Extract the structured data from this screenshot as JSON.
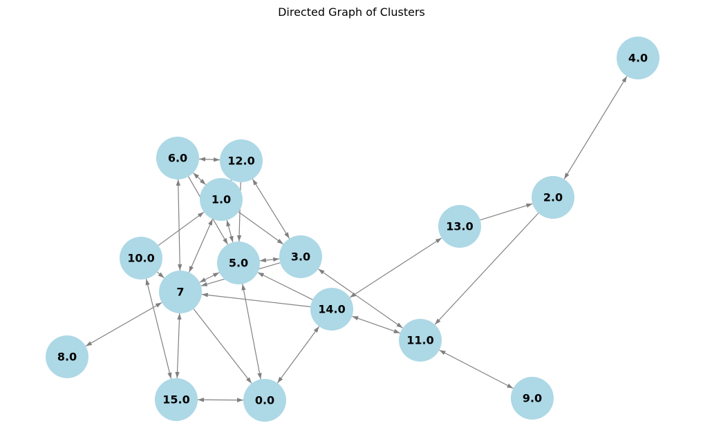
{
  "graph": {
    "title": "Directed Graph of Clusters",
    "colors": {
      "node_fill": "#add8e6",
      "edge": "#808080",
      "label": "#000000"
    },
    "nodes": [
      {
        "id": "4.0",
        "label": "4.0"
      },
      {
        "id": "6.0",
        "label": "6.0"
      },
      {
        "id": "12.0",
        "label": "12.0"
      },
      {
        "id": "1.0",
        "label": "1.0"
      },
      {
        "id": "2.0",
        "label": "2.0"
      },
      {
        "id": "13.0",
        "label": "13.0"
      },
      {
        "id": "10.0",
        "label": "10.0"
      },
      {
        "id": "5.0",
        "label": "5.0"
      },
      {
        "id": "3.0",
        "label": "3.0"
      },
      {
        "id": "7",
        "label": "7"
      },
      {
        "id": "14.0",
        "label": "14.0"
      },
      {
        "id": "11.0",
        "label": "11.0"
      },
      {
        "id": "8.0",
        "label": "8.0"
      },
      {
        "id": "15.0",
        "label": "15.0"
      },
      {
        "id": "0.0",
        "label": "0.0"
      },
      {
        "id": "9.0",
        "label": "9.0"
      }
    ],
    "edges": [
      {
        "source": "2.0",
        "target": "4.0",
        "bidirectional": true
      },
      {
        "source": "6.0",
        "target": "12.0",
        "bidirectional": true
      },
      {
        "source": "13.0",
        "target": "2.0",
        "bidirectional": false
      },
      {
        "source": "2.0",
        "target": "11.0",
        "bidirectional": false
      },
      {
        "source": "6.0",
        "target": "1.0",
        "bidirectional": true
      },
      {
        "source": "12.0",
        "target": "1.0",
        "bidirectional": false
      },
      {
        "source": "12.0",
        "target": "3.0",
        "bidirectional": true
      },
      {
        "source": "12.0",
        "target": "5.0",
        "bidirectional": false
      },
      {
        "source": "6.0",
        "target": "7",
        "bidirectional": true
      },
      {
        "source": "6.0",
        "target": "5.0",
        "bidirectional": false
      },
      {
        "source": "1.0",
        "target": "5.0",
        "bidirectional": true
      },
      {
        "source": "1.0",
        "target": "3.0",
        "bidirectional": false
      },
      {
        "source": "1.0",
        "target": "7",
        "bidirectional": true
      },
      {
        "source": "10.0",
        "target": "1.0",
        "bidirectional": false
      },
      {
        "source": "10.0",
        "target": "7",
        "bidirectional": false
      },
      {
        "source": "10.0",
        "target": "15.0",
        "bidirectional": true
      },
      {
        "source": "5.0",
        "target": "3.0",
        "bidirectional": true
      },
      {
        "source": "5.0",
        "target": "7",
        "bidirectional": true
      },
      {
        "source": "3.0",
        "target": "7",
        "bidirectional": false
      },
      {
        "source": "5.0",
        "target": "0.0",
        "bidirectional": true
      },
      {
        "source": "14.0",
        "target": "7",
        "bidirectional": false
      },
      {
        "source": "14.0",
        "target": "5.0",
        "bidirectional": false
      },
      {
        "source": "14.0",
        "target": "13.0",
        "bidirectional": true
      },
      {
        "source": "14.0",
        "target": "11.0",
        "bidirectional": true
      },
      {
        "source": "3.0",
        "target": "11.0",
        "bidirectional": true
      },
      {
        "source": "14.0",
        "target": "0.0",
        "bidirectional": true
      },
      {
        "source": "7",
        "target": "8.0",
        "bidirectional": true
      },
      {
        "source": "7",
        "target": "15.0",
        "bidirectional": true
      },
      {
        "source": "7",
        "target": "0.0",
        "bidirectional": false
      },
      {
        "source": "15.0",
        "target": "0.0",
        "bidirectional": true
      },
      {
        "source": "11.0",
        "target": "9.0",
        "bidirectional": true
      }
    ]
  }
}
